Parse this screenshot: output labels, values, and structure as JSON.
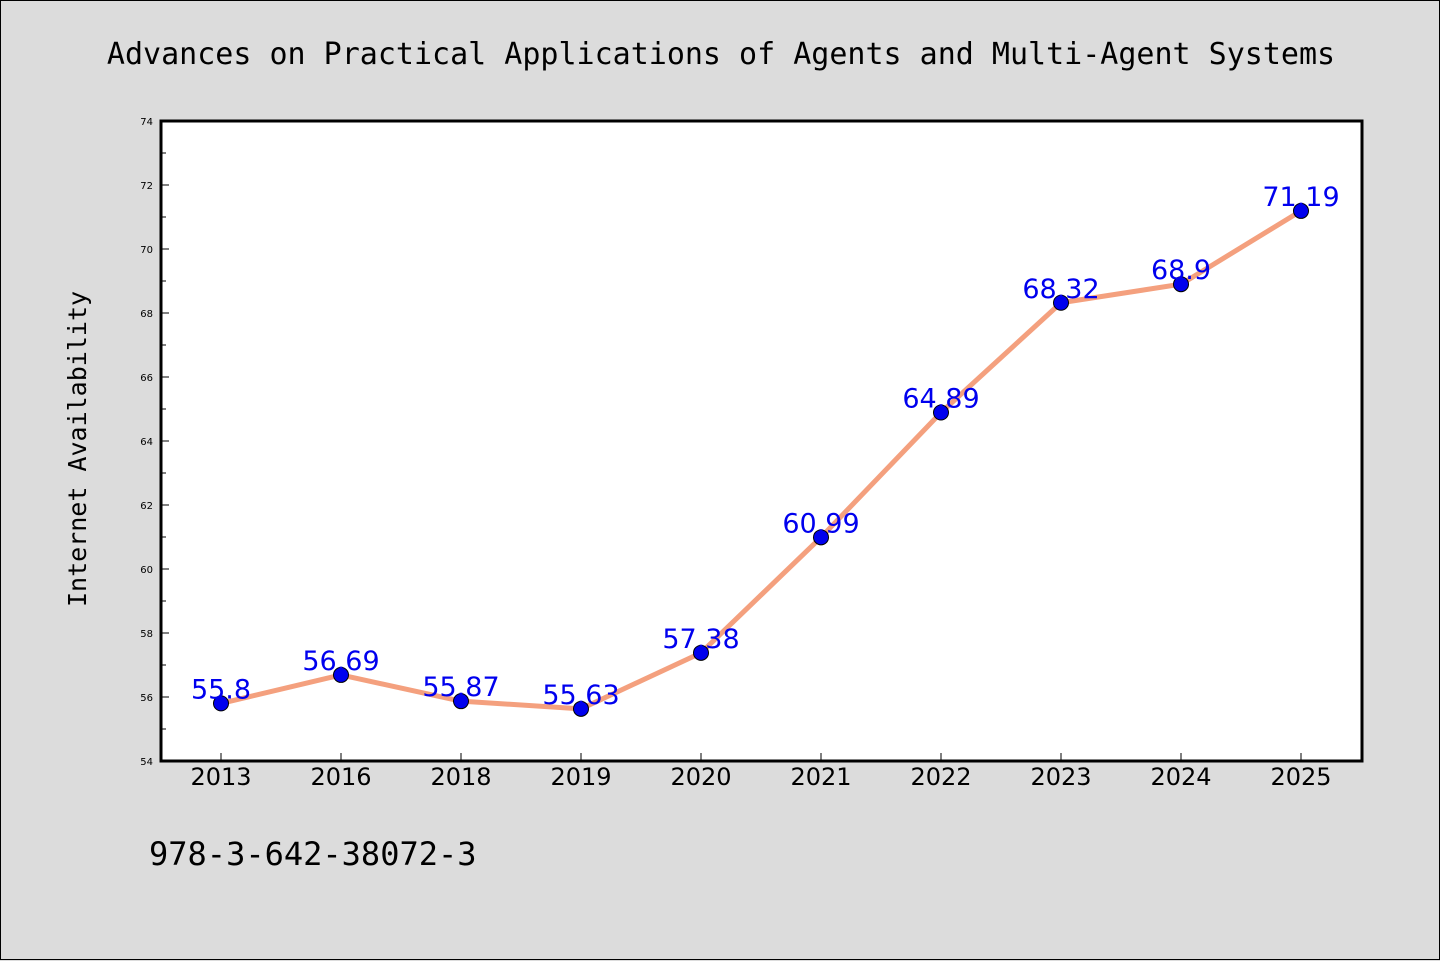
{
  "chart_data": {
    "type": "line",
    "title": "Advances on Practical Applications of Agents and Multi-Agent Systems",
    "xlabel": "",
    "ylabel": "Internet Availability",
    "categories": [
      "2013",
      "2016",
      "2018",
      "2019",
      "2020",
      "2021",
      "2022",
      "2023",
      "2024",
      "2025"
    ],
    "series": [
      {
        "values": [
          55.8,
          56.69,
          55.87,
          55.63,
          57.38,
          60.99,
          64.89,
          68.32,
          68.9,
          71.19
        ],
        "value_labels": [
          "55.8",
          "56.69",
          "55.87",
          "55.63",
          "57.38",
          "60.99",
          "64.89",
          "68.32",
          "68.9",
          "71.19"
        ],
        "line_color": "#f4a07e",
        "marker_color": "#0000ee",
        "label_color": "#0000ee"
      }
    ],
    "ylim": [
      54,
      74
    ],
    "yticks": [
      "54",
      "56",
      "58",
      "60",
      "62",
      "64",
      "66",
      "68",
      "70",
      "72",
      "74"
    ],
    "grid": false,
    "legend": "none",
    "background": "#dcdcdc",
    "plot_background": "#ffffff"
  },
  "footnote": "978-3-642-38072-3"
}
